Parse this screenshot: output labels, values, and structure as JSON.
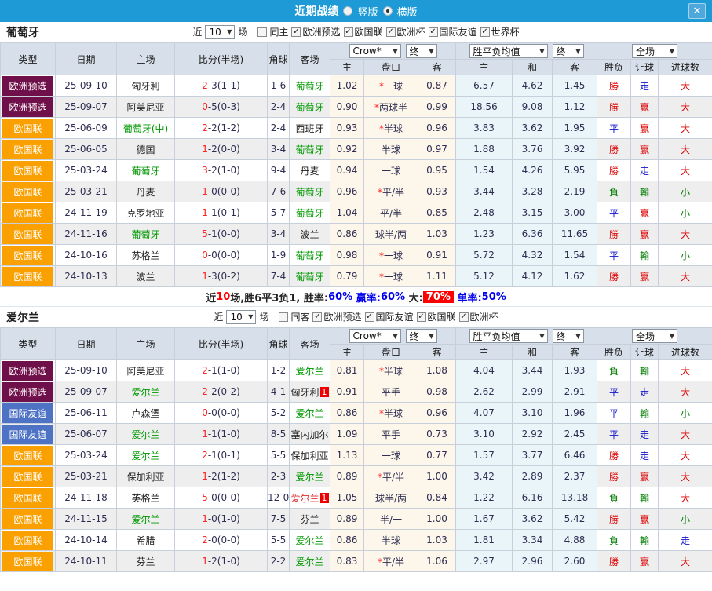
{
  "titlebar": {
    "title": "近期战绩",
    "view_options": [
      {
        "label": "竖版",
        "selected": false
      },
      {
        "label": "横版",
        "selected": true
      }
    ],
    "close_icon": "✕"
  },
  "table_header": {
    "type": "类型",
    "date": "日期",
    "home": "主场",
    "score": "比分(半场)",
    "corner": "角球",
    "away": "客场",
    "odds_company_select": "Crow*",
    "odds_time_select": "终",
    "odds_sub": [
      "主",
      "盘口",
      "客"
    ],
    "avg_select": "胜平负均值",
    "avg_time_select": "终",
    "avg_sub": [
      "主",
      "和",
      "客"
    ],
    "scope_select": "全场",
    "result_sub": [
      "胜负",
      "让球",
      "进球数"
    ]
  },
  "type_colors": {
    "欧洲预选": "#70104A",
    "欧国联": "#FAA000",
    "国际友谊": "#4E72C4"
  },
  "team_colors": {
    "g": "#009900",
    "k": "#222222",
    "r": "#E03030"
  },
  "result_colors": {
    "r": "#DD0000",
    "b": "#1111CC",
    "g": "#007C00"
  },
  "seg_colors": {
    "k": "#222222",
    "r": "#FF0000",
    "b": "#0000EE"
  },
  "colors": {
    "titlebar_bg": "#1E9BD7",
    "header_bg": "#D7E0EA",
    "odds_bg": "#FDF6EA",
    "avg_bg": "#EAF5FA",
    "stripe_bg": "#EEEEEE",
    "summary_badge_bg": "#FF0000"
  },
  "sections": [
    {
      "team": "葡萄牙",
      "filter": {
        "near": "近",
        "count": "10",
        "unit": "场",
        "same": {
          "label": "同主",
          "checked": false
        },
        "competitions": [
          {
            "label": "欧洲预选",
            "checked": true
          },
          {
            "label": "欧国联",
            "checked": true
          },
          {
            "label": "欧洲杯",
            "checked": true
          },
          {
            "label": "国际友谊",
            "checked": true
          },
          {
            "label": "世界杯",
            "checked": true
          }
        ]
      },
      "rows": [
        {
          "type": "欧洲预选",
          "date": "25-09-10",
          "home": "匈牙利",
          "home_color": "k",
          "score": "2-3(1-1)",
          "corner": "1-6",
          "away": "葡萄牙",
          "away_color": "g",
          "odds": [
            "1.02",
            "*一球",
            "0.87"
          ],
          "avg": [
            "6.57",
            "4.62",
            "1.45"
          ],
          "results": [
            [
              "勝",
              "r"
            ],
            [
              "走",
              "b"
            ],
            [
              "大",
              "r"
            ]
          ]
        },
        {
          "type": "欧洲预选",
          "date": "25-09-07",
          "home": "阿美尼亚",
          "home_color": "k",
          "score": "0-5(0-3)",
          "corner": "2-4",
          "away": "葡萄牙",
          "away_color": "g",
          "odds": [
            "0.90",
            "*两球半",
            "0.99"
          ],
          "avg": [
            "18.56",
            "9.08",
            "1.12"
          ],
          "results": [
            [
              "勝",
              "r"
            ],
            [
              "赢",
              "r"
            ],
            [
              "大",
              "r"
            ]
          ]
        },
        {
          "type": "欧国联",
          "date": "25-06-09",
          "home": "葡萄牙(中)",
          "home_color": "g",
          "score": "2-2(1-2)",
          "corner": "2-4",
          "away": "西班牙",
          "away_color": "k",
          "odds": [
            "0.93",
            "*半球",
            "0.96"
          ],
          "avg": [
            "3.83",
            "3.62",
            "1.95"
          ],
          "results": [
            [
              "平",
              "b"
            ],
            [
              "赢",
              "r"
            ],
            [
              "大",
              "r"
            ]
          ]
        },
        {
          "type": "欧国联",
          "date": "25-06-05",
          "home": "德国",
          "home_color": "k",
          "score": "1-2(0-0)",
          "corner": "3-4",
          "away": "葡萄牙",
          "away_color": "g",
          "odds": [
            "0.92",
            "半球",
            "0.97"
          ],
          "avg": [
            "1.88",
            "3.76",
            "3.92"
          ],
          "results": [
            [
              "勝",
              "r"
            ],
            [
              "赢",
              "r"
            ],
            [
              "大",
              "r"
            ]
          ]
        },
        {
          "type": "欧国联",
          "date": "25-03-24",
          "home": "葡萄牙",
          "home_color": "g",
          "score": "3-2(1-0)",
          "corner": "9-4",
          "away": "丹麦",
          "away_color": "k",
          "odds": [
            "0.94",
            "一球",
            "0.95"
          ],
          "avg": [
            "1.54",
            "4.26",
            "5.95"
          ],
          "results": [
            [
              "勝",
              "r"
            ],
            [
              "走",
              "b"
            ],
            [
              "大",
              "r"
            ]
          ]
        },
        {
          "type": "欧国联",
          "date": "25-03-21",
          "home": "丹麦",
          "home_color": "k",
          "score": "1-0(0-0)",
          "corner": "7-6",
          "away": "葡萄牙",
          "away_color": "g",
          "odds": [
            "0.96",
            "*平/半",
            "0.93"
          ],
          "avg": [
            "3.44",
            "3.28",
            "2.19"
          ],
          "results": [
            [
              "負",
              "g"
            ],
            [
              "輸",
              "g"
            ],
            [
              "小",
              "g"
            ]
          ]
        },
        {
          "type": "欧国联",
          "date": "24-11-19",
          "home": "克罗地亚",
          "home_color": "k",
          "score": "1-1(0-1)",
          "corner": "5-7",
          "away": "葡萄牙",
          "away_color": "g",
          "odds": [
            "1.04",
            "平/半",
            "0.85"
          ],
          "avg": [
            "2.48",
            "3.15",
            "3.00"
          ],
          "results": [
            [
              "平",
              "b"
            ],
            [
              "赢",
              "r"
            ],
            [
              "小",
              "g"
            ]
          ]
        },
        {
          "type": "欧国联",
          "date": "24-11-16",
          "home": "葡萄牙",
          "home_color": "g",
          "score": "5-1(0-0)",
          "corner": "3-4",
          "away": "波兰",
          "away_color": "k",
          "odds": [
            "0.86",
            "球半/两",
            "1.03"
          ],
          "avg": [
            "1.23",
            "6.36",
            "11.65"
          ],
          "results": [
            [
              "勝",
              "r"
            ],
            [
              "赢",
              "r"
            ],
            [
              "大",
              "r"
            ]
          ]
        },
        {
          "type": "欧国联",
          "date": "24-10-16",
          "home": "苏格兰",
          "home_color": "k",
          "score": "0-0(0-0)",
          "corner": "1-9",
          "away": "葡萄牙",
          "away_color": "g",
          "odds": [
            "0.98",
            "*一球",
            "0.91"
          ],
          "avg": [
            "5.72",
            "4.32",
            "1.54"
          ],
          "results": [
            [
              "平",
              "b"
            ],
            [
              "輸",
              "g"
            ],
            [
              "小",
              "g"
            ]
          ]
        },
        {
          "type": "欧国联",
          "date": "24-10-13",
          "home": "波兰",
          "home_color": "k",
          "score": "1-3(0-2)",
          "corner": "7-4",
          "away": "葡萄牙",
          "away_color": "g",
          "odds": [
            "0.79",
            "*一球",
            "1.11"
          ],
          "avg": [
            "5.12",
            "4.12",
            "1.62"
          ],
          "results": [
            [
              "勝",
              "r"
            ],
            [
              "赢",
              "r"
            ],
            [
              "大",
              "r"
            ]
          ]
        }
      ],
      "summary": {
        "segments": [
          [
            "近",
            "k"
          ],
          [
            "10",
            "r"
          ],
          [
            "场,胜6平3负1, ",
            "k"
          ],
          [
            "胜率:",
            "k"
          ],
          [
            "60%",
            "b"
          ],
          [
            " 赢率:",
            "b"
          ],
          [
            "60%",
            "b"
          ],
          [
            " 大:",
            "k"
          ],
          [
            "70%",
            "wr"
          ],
          [
            " 单率:",
            "b"
          ],
          [
            "50%",
            "b"
          ]
        ]
      }
    },
    {
      "team": "爱尔兰",
      "filter": {
        "near": "近",
        "count": "10",
        "unit": "场",
        "same": {
          "label": "同客",
          "checked": false
        },
        "competitions": [
          {
            "label": "欧洲预选",
            "checked": true
          },
          {
            "label": "国际友谊",
            "checked": true
          },
          {
            "label": "欧国联",
            "checked": true
          },
          {
            "label": "欧洲杯",
            "checked": true
          }
        ]
      },
      "rows": [
        {
          "type": "欧洲预选",
          "date": "25-09-10",
          "home": "阿美尼亚",
          "home_color": "k",
          "score": "2-1(1-0)",
          "corner": "1-2",
          "away": "爱尔兰",
          "away_color": "g",
          "odds": [
            "0.81",
            "*半球",
            "1.08"
          ],
          "avg": [
            "4.04",
            "3.44",
            "1.93"
          ],
          "results": [
            [
              "負",
              "g"
            ],
            [
              "輸",
              "g"
            ],
            [
              "大",
              "r"
            ]
          ]
        },
        {
          "type": "欧洲预选",
          "date": "25-09-07",
          "home": "爱尔兰",
          "home_color": "g",
          "score": "2-2(0-2)",
          "corner": "4-1",
          "away": "匈牙利",
          "away_color": "k",
          "away_badge": "1",
          "odds": [
            "0.91",
            "平手",
            "0.98"
          ],
          "avg": [
            "2.62",
            "2.99",
            "2.91"
          ],
          "results": [
            [
              "平",
              "b"
            ],
            [
              "走",
              "b"
            ],
            [
              "大",
              "r"
            ]
          ]
        },
        {
          "type": "国际友谊",
          "date": "25-06-11",
          "home": "卢森堡",
          "home_color": "k",
          "score": "0-0(0-0)",
          "corner": "5-2",
          "away": "爱尔兰",
          "away_color": "g",
          "odds": [
            "0.86",
            "*半球",
            "0.96"
          ],
          "avg": [
            "4.07",
            "3.10",
            "1.96"
          ],
          "results": [
            [
              "平",
              "b"
            ],
            [
              "輸",
              "g"
            ],
            [
              "小",
              "g"
            ]
          ]
        },
        {
          "type": "国际友谊",
          "date": "25-06-07",
          "home": "爱尔兰",
          "home_color": "g",
          "score": "1-1(1-0)",
          "corner": "8-5",
          "away": "塞内加尔",
          "away_color": "k",
          "odds": [
            "1.09",
            "平手",
            "0.73"
          ],
          "avg": [
            "3.10",
            "2.92",
            "2.45"
          ],
          "results": [
            [
              "平",
              "b"
            ],
            [
              "走",
              "b"
            ],
            [
              "大",
              "r"
            ]
          ]
        },
        {
          "type": "欧国联",
          "date": "25-03-24",
          "home": "爱尔兰",
          "home_color": "g",
          "score": "2-1(0-1)",
          "corner": "5-5",
          "away": "保加利亚",
          "away_color": "k",
          "odds": [
            "1.13",
            "一球",
            "0.77"
          ],
          "avg": [
            "1.57",
            "3.77",
            "6.46"
          ],
          "results": [
            [
              "勝",
              "r"
            ],
            [
              "走",
              "b"
            ],
            [
              "大",
              "r"
            ]
          ]
        },
        {
          "type": "欧国联",
          "date": "25-03-21",
          "home": "保加利亚",
          "home_color": "k",
          "score": "1-2(1-2)",
          "corner": "2-3",
          "away": "爱尔兰",
          "away_color": "g",
          "odds": [
            "0.89",
            "*平/半",
            "1.00"
          ],
          "avg": [
            "3.42",
            "2.89",
            "2.37"
          ],
          "results": [
            [
              "勝",
              "r"
            ],
            [
              "赢",
              "r"
            ],
            [
              "大",
              "r"
            ]
          ]
        },
        {
          "type": "欧国联",
          "date": "24-11-18",
          "home": "英格兰",
          "home_color": "k",
          "score": "5-0(0-0)",
          "corner": "12-0",
          "away": "爱尔兰",
          "away_color": "r",
          "away_badge": "1",
          "odds": [
            "1.05",
            "球半/两",
            "0.84"
          ],
          "avg": [
            "1.22",
            "6.16",
            "13.18"
          ],
          "results": [
            [
              "負",
              "g"
            ],
            [
              "輸",
              "g"
            ],
            [
              "大",
              "r"
            ]
          ]
        },
        {
          "type": "欧国联",
          "date": "24-11-15",
          "home": "爱尔兰",
          "home_color": "g",
          "score": "1-0(1-0)",
          "corner": "7-5",
          "away": "芬兰",
          "away_color": "k",
          "odds": [
            "0.89",
            "半/一",
            "1.00"
          ],
          "avg": [
            "1.67",
            "3.62",
            "5.42"
          ],
          "results": [
            [
              "勝",
              "r"
            ],
            [
              "赢",
              "r"
            ],
            [
              "小",
              "g"
            ]
          ]
        },
        {
          "type": "欧国联",
          "date": "24-10-14",
          "home": "希腊",
          "home_color": "k",
          "score": "2-0(0-0)",
          "corner": "5-5",
          "away": "爱尔兰",
          "away_color": "g",
          "odds": [
            "0.86",
            "半球",
            "1.03"
          ],
          "avg": [
            "1.81",
            "3.34",
            "4.88"
          ],
          "results": [
            [
              "負",
              "g"
            ],
            [
              "輸",
              "g"
            ],
            [
              "走",
              "b"
            ]
          ]
        },
        {
          "type": "欧国联",
          "date": "24-10-11",
          "home": "芬兰",
          "home_color": "k",
          "score": "1-2(1-0)",
          "corner": "2-2",
          "away": "爱尔兰",
          "away_color": "g",
          "odds": [
            "0.83",
            "*平/半",
            "1.06"
          ],
          "avg": [
            "2.97",
            "2.96",
            "2.60"
          ],
          "results": [
            [
              "勝",
              "r"
            ],
            [
              "赢",
              "r"
            ],
            [
              "大",
              "r"
            ]
          ]
        }
      ]
    }
  ]
}
